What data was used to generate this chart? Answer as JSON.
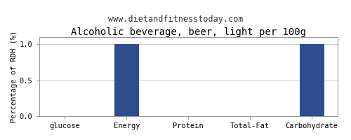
{
  "title": "Alcoholic beverage, beer, light per 100g",
  "subtitle": "www.dietandfitnesstoday.com",
  "ylabel": "Percentage of RDH (%)",
  "categories": [
    "glucose",
    "Energy",
    "Protein",
    "Total-Fat",
    "Carbohydrate"
  ],
  "values": [
    0.0,
    1.0,
    0.0,
    0.0,
    1.0
  ],
  "bar_color": "#2e4d8e",
  "ylim": [
    0.0,
    1.1
  ],
  "yticks": [
    0.0,
    0.5,
    1.0
  ],
  "background_color": "#ffffff",
  "plot_bg_color": "#ffffff",
  "grid_color": "#cccccc",
  "title_fontsize": 10,
  "subtitle_fontsize": 8.5,
  "ylabel_fontsize": 7.5,
  "tick_fontsize": 7.5,
  "bar_width": 0.4
}
